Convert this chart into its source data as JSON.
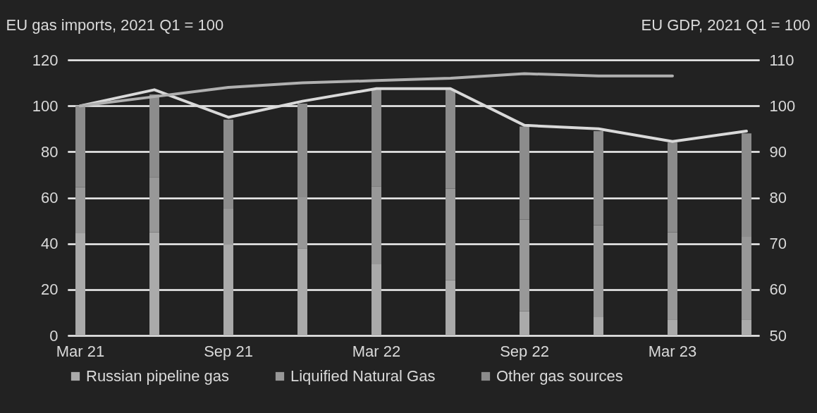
{
  "chart_data": {
    "type": "bar",
    "ylabel": "EU gas imports, 2021 Q1 = 100",
    "y2label": "EU GDP, 2021 Q1 = 100",
    "categories": [
      "Mar 21",
      null,
      "Sep 21",
      null,
      "Mar 22",
      null,
      "Sep 22",
      null,
      "Mar 23",
      null
    ],
    "series": [
      {
        "name": "Russian pipeline gas",
        "color": "#aaaaaa",
        "values": [
          44.5,
          45,
          39.5,
          38,
          31,
          24,
          10.5,
          8,
          7,
          7
        ]
      },
      {
        "name": "Liquified Natural Gas",
        "color": "#989898",
        "values": [
          20,
          24,
          16,
          22,
          34,
          40,
          40,
          40,
          38,
          36
        ]
      },
      {
        "name": "Other gas sources",
        "color": "#8c8c8c",
        "values": [
          35.5,
          36,
          38.5,
          41,
          42,
          43,
          40.5,
          41,
          39,
          45
        ]
      },
      {
        "type": "line",
        "color": "#d9d9d9",
        "values": [
          100,
          107,
          95,
          102,
          107.5,
          107.5,
          91.5,
          90,
          84.5,
          89
        ]
      },
      {
        "type": "line",
        "axis": "y2",
        "color": "#b0b0b0",
        "values": [
          100,
          102,
          104,
          105,
          105.5,
          106,
          107,
          106.5,
          106.5,
          null
        ]
      }
    ],
    "stacked": true,
    "ylim": [
      0,
      120
    ],
    "yticks": [
      0,
      20,
      40,
      60,
      80,
      100,
      120
    ],
    "y2lim": [
      50,
      110
    ],
    "y2ticks": [
      50,
      60,
      70,
      80,
      90,
      100,
      110
    ],
    "grid": "y",
    "legend": "bottom"
  }
}
